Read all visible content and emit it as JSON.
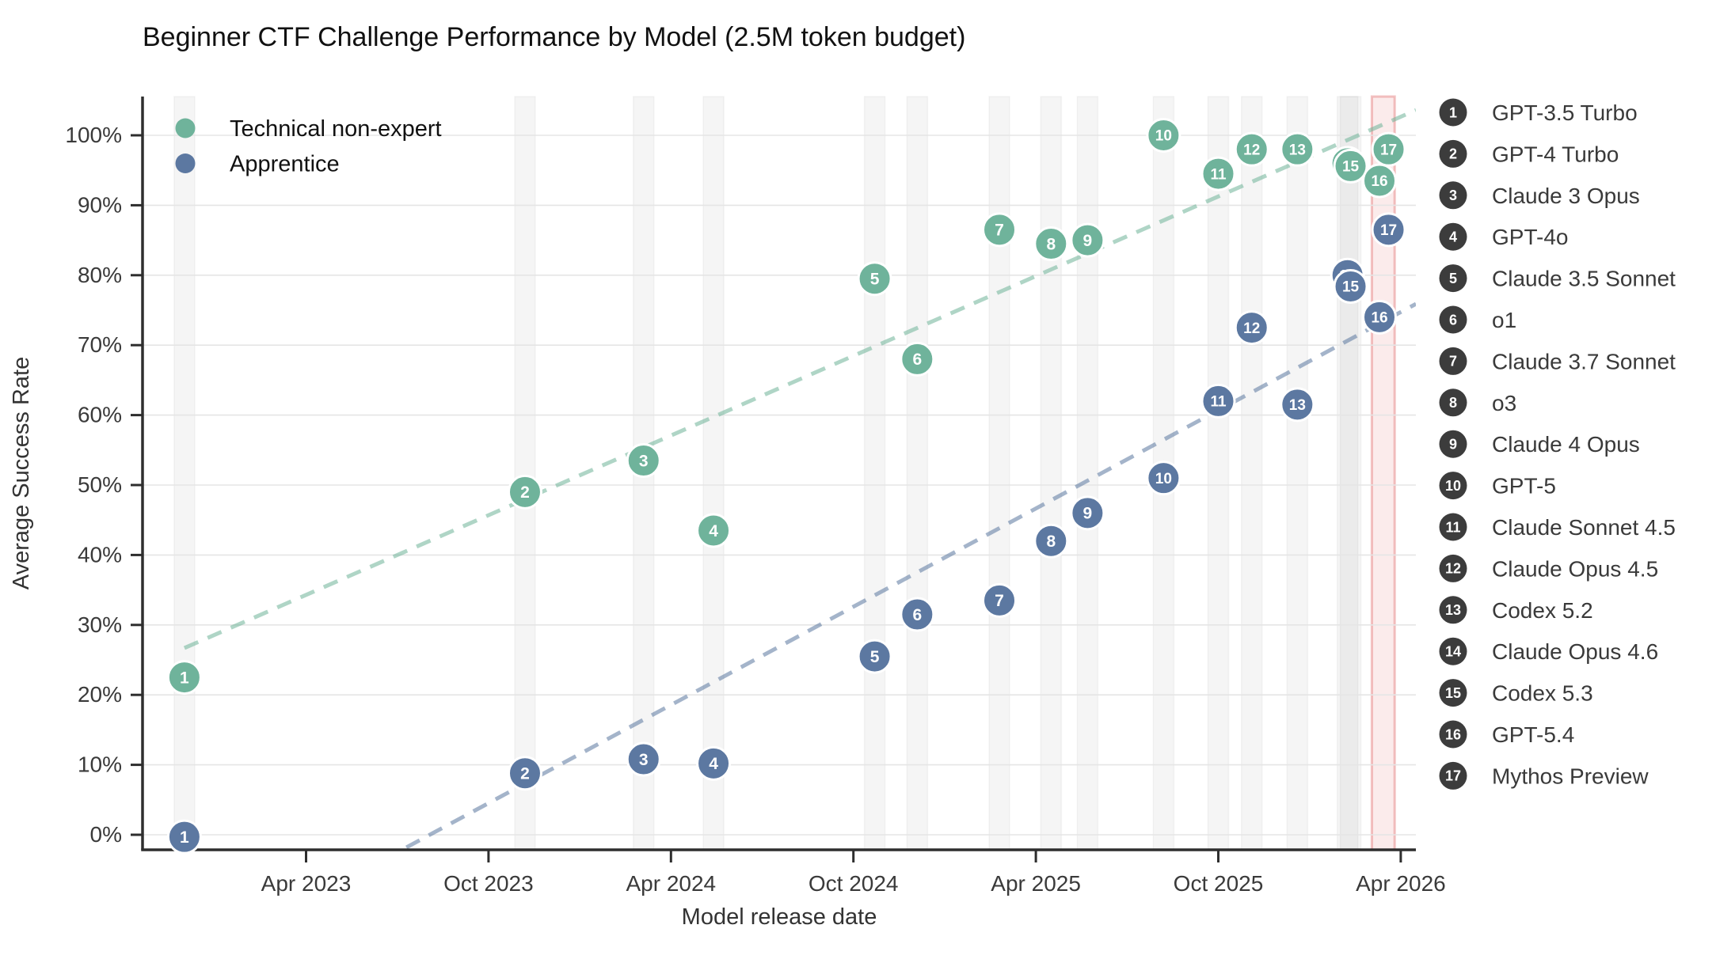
{
  "title": "Beginner CTF Challenge Performance by Model (2.5M token budget)",
  "chart_data": {
    "type": "scatter",
    "title": "Beginner CTF Challenge Performance by Model (2.5M token budget)",
    "xlabel": "Model release date",
    "ylabel": "Average Success Rate",
    "x_unit": "months_after_Apr_2023",
    "x_ticks": [
      {
        "m": 0,
        "label": "Apr 2023"
      },
      {
        "m": 6,
        "label": "Oct 2023"
      },
      {
        "m": 12,
        "label": "Apr 2024"
      },
      {
        "m": 18,
        "label": "Oct 2024"
      },
      {
        "m": 24,
        "label": "Apr 2025"
      },
      {
        "m": 30,
        "label": "Oct 2025"
      },
      {
        "m": 36,
        "label": "Apr 2026"
      }
    ],
    "y_ticks": [
      {
        "v": 0,
        "label": "0%"
      },
      {
        "v": 10,
        "label": "10%"
      },
      {
        "v": 20,
        "label": "20%"
      },
      {
        "v": 30,
        "label": "30%"
      },
      {
        "v": 40,
        "label": "40%"
      },
      {
        "v": 50,
        "label": "50%"
      },
      {
        "v": 60,
        "label": "60%"
      },
      {
        "v": 70,
        "label": "70%"
      },
      {
        "v": 80,
        "label": "80%"
      },
      {
        "v": 90,
        "label": "90%"
      },
      {
        "v": 100,
        "label": "100%"
      }
    ],
    "ylim": [
      -2,
      107.5
    ],
    "grid": "horizontal",
    "legend_position": "right",
    "series": [
      {
        "id": "nonexpert",
        "name": "Technical non-expert",
        "color": "#6FB39B",
        "trend_color": "rgba(110,178,152,0.55)",
        "trend": {
          "m0": -4.0,
          "p0": 26.7,
          "m1": 36.5,
          "p1": 103.6
        }
      },
      {
        "id": "apprentice",
        "name": "Apprentice",
        "color": "#5C78A1",
        "trend_color": "rgba(90,118,158,0.55)",
        "trend": {
          "m0": 3.3,
          "p0": -1.8,
          "m1": 36.5,
          "p1": 75.9
        }
      }
    ],
    "models": [
      {
        "num": 1,
        "name": "GPT-3.5 Turbo",
        "m": -4.0,
        "nonexpert": 22.5,
        "apprentice": -0.3,
        "stripe": "gray"
      },
      {
        "num": 2,
        "name": "GPT-4 Turbo",
        "m": 7.2,
        "nonexpert": 49.0,
        "apprentice": 8.8,
        "stripe": "gray"
      },
      {
        "num": 3,
        "name": "Claude 3 Opus",
        "m": 11.1,
        "nonexpert": 53.5,
        "apprentice": 10.8,
        "stripe": "gray"
      },
      {
        "num": 4,
        "name": "GPT-4o",
        "m": 13.4,
        "nonexpert": 43.5,
        "apprentice": 10.2,
        "stripe": "gray"
      },
      {
        "num": 5,
        "name": "Claude 3.5 Sonnet",
        "m": 18.7,
        "nonexpert": 79.5,
        "apprentice": 25.5,
        "stripe": "gray"
      },
      {
        "num": 6,
        "name": "o1",
        "m": 20.1,
        "nonexpert": 68.0,
        "apprentice": 31.5,
        "stripe": "gray"
      },
      {
        "num": 7,
        "name": "Claude 3.7 Sonnet",
        "m": 22.8,
        "nonexpert": 86.5,
        "apprentice": 33.5,
        "stripe": "gray"
      },
      {
        "num": 8,
        "name": "o3",
        "m": 24.5,
        "nonexpert": 84.5,
        "apprentice": 42.0,
        "stripe": "gray"
      },
      {
        "num": 9,
        "name": "Claude 4 Opus",
        "m": 25.7,
        "nonexpert": 85.0,
        "apprentice": 46.0,
        "stripe": "gray"
      },
      {
        "num": 10,
        "name": "GPT-5",
        "m": 28.2,
        "nonexpert": 100.0,
        "apprentice": 51.0,
        "stripe": "gray"
      },
      {
        "num": 11,
        "name": "Claude Sonnet 4.5",
        "m": 30.0,
        "nonexpert": 94.5,
        "apprentice": 62.0,
        "stripe": "gray"
      },
      {
        "num": 12,
        "name": "Claude Opus 4.5",
        "m": 31.1,
        "nonexpert": 98.0,
        "apprentice": 72.5,
        "stripe": "gray"
      },
      {
        "num": 13,
        "name": "Codex 5.2",
        "m": 32.6,
        "nonexpert": 98.0,
        "apprentice": 61.5,
        "stripe": "gray"
      },
      {
        "num": 14,
        "name": "Claude Opus 4.6",
        "m": 34.25,
        "nonexpert": 96.0,
        "apprentice": 80.0,
        "stripe": "gray"
      },
      {
        "num": 15,
        "name": "Codex 5.3",
        "m": 34.35,
        "nonexpert": 95.6,
        "apprentice": 78.4,
        "stripe": "gray"
      },
      {
        "num": 16,
        "name": "GPT-5.4",
        "m": 35.3,
        "nonexpert": 93.5,
        "apprentice": 74.0,
        "stripe": "none"
      },
      {
        "num": 17,
        "name": "Mythos Preview",
        "m": 35.6,
        "nonexpert": 98.0,
        "apprentice": 86.5,
        "stripe": "none"
      }
    ],
    "highlight_band": {
      "m0": 35.05,
      "m1": 35.8,
      "fill": "rgba(214,60,60,0.10)",
      "stroke": "rgba(214,60,60,0.30)"
    }
  },
  "style": {
    "stripe_fill": "rgba(130,130,130,0.08)",
    "stripe_stroke": "rgba(0,0,0,0.04)",
    "grid_color": "#e5e5e5",
    "axis_color": "#2e2e2e",
    "badge_color": "#3C3C3C"
  }
}
